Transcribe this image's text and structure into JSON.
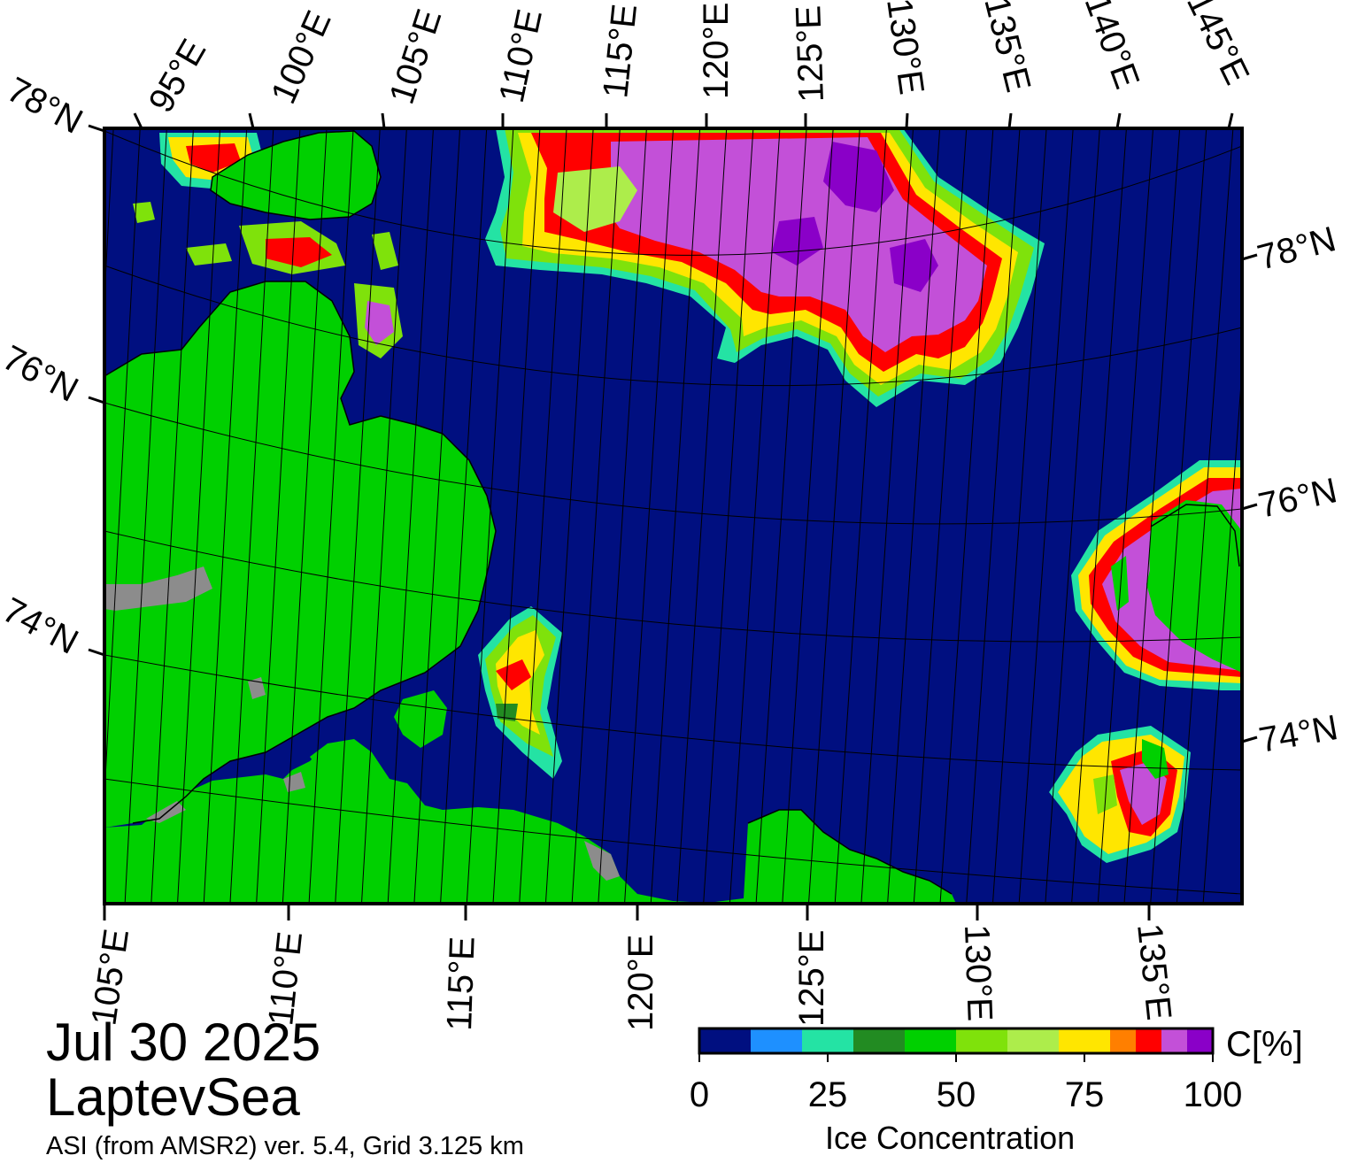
{
  "map": {
    "date": "Jul 30 2025",
    "region": "LaptevSea",
    "source": "ASI (from AMSR2) ver. 5.4,  Grid 3.125 km",
    "top_lon_labels": [
      "95°E",
      "100°E",
      "105°E",
      "110°E",
      "115°E",
      "120°E",
      "125°E",
      "130°E",
      "135°E",
      "140°E",
      "145°E"
    ],
    "bottom_lon_labels": [
      "105°E",
      "110°E",
      "115°E",
      "120°E",
      "125°E",
      "130°E",
      "135°E"
    ],
    "left_lat_labels": [
      "78°N",
      "76°N",
      "74°N"
    ],
    "right_lat_labels": [
      "78°N",
      "76°N",
      "74°N"
    ],
    "colors": {
      "ocean": "#000f80",
      "land": "#00d000",
      "landmask": "#8c8c8c",
      "frame": "#000000"
    }
  },
  "colorbar": {
    "title": "Ice Concentration",
    "unit": "C[%]",
    "ticks": [
      "0",
      "25",
      "50",
      "75",
      "100"
    ],
    "colors": [
      "#000f80",
      "#1e90ff",
      "#24e3a4",
      "#228b22",
      "#00d000",
      "#7fe20b",
      "#aded4b",
      "#ffe600",
      "#ff7f00",
      "#ff0000",
      "#c350d8",
      "#8a00c8"
    ]
  }
}
